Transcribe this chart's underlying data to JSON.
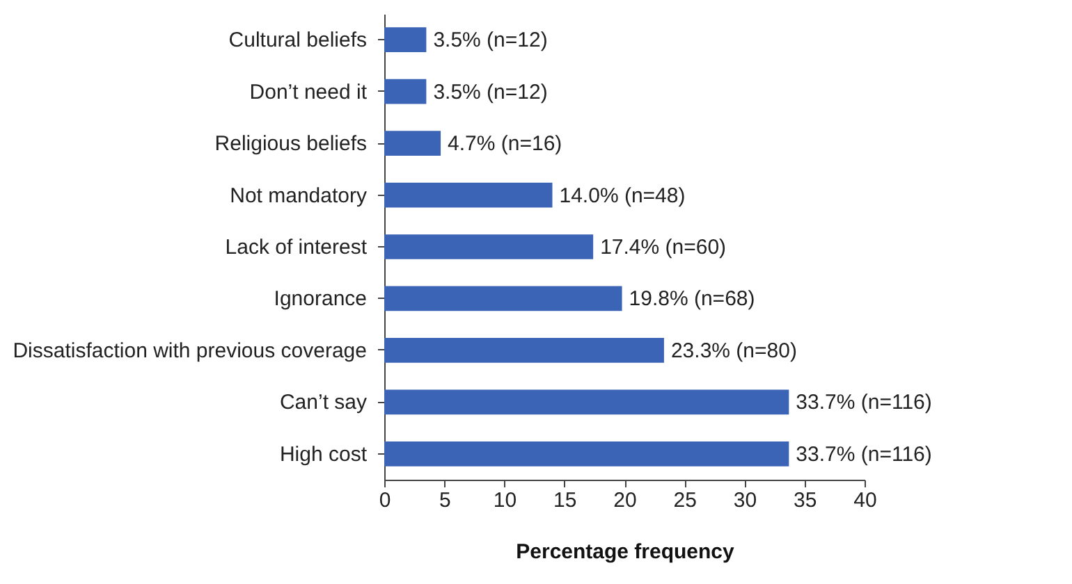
{
  "chart_data": {
    "type": "bar",
    "orientation": "horizontal",
    "xlabel": "Percentage frequency",
    "categories": [
      "Cultural beliefs",
      "Don’t need it",
      "Religious beliefs",
      "Not mandatory",
      "Lack of interest",
      "Ignorance",
      "Dissatisfaction with previous coverage",
      "Can’t say",
      "High cost"
    ],
    "values": [
      3.5,
      3.5,
      4.7,
      14.0,
      17.4,
      19.8,
      23.3,
      33.7,
      33.7
    ],
    "value_labels": [
      "3.5% (n=12)",
      "3.5% (n=12)",
      "4.7% (n=16)",
      "14.0% (n=48)",
      "17.4% (n=60)",
      "19.8% (n=68)",
      "23.3% (n=80)",
      "33.7% (n=116)",
      "33.7% (n=116)"
    ],
    "color": "#3b63b6",
    "xlim": [
      0,
      40
    ],
    "xticks": [
      0,
      5,
      10,
      15,
      20,
      25,
      30,
      35,
      40
    ],
    "grid": false
  }
}
